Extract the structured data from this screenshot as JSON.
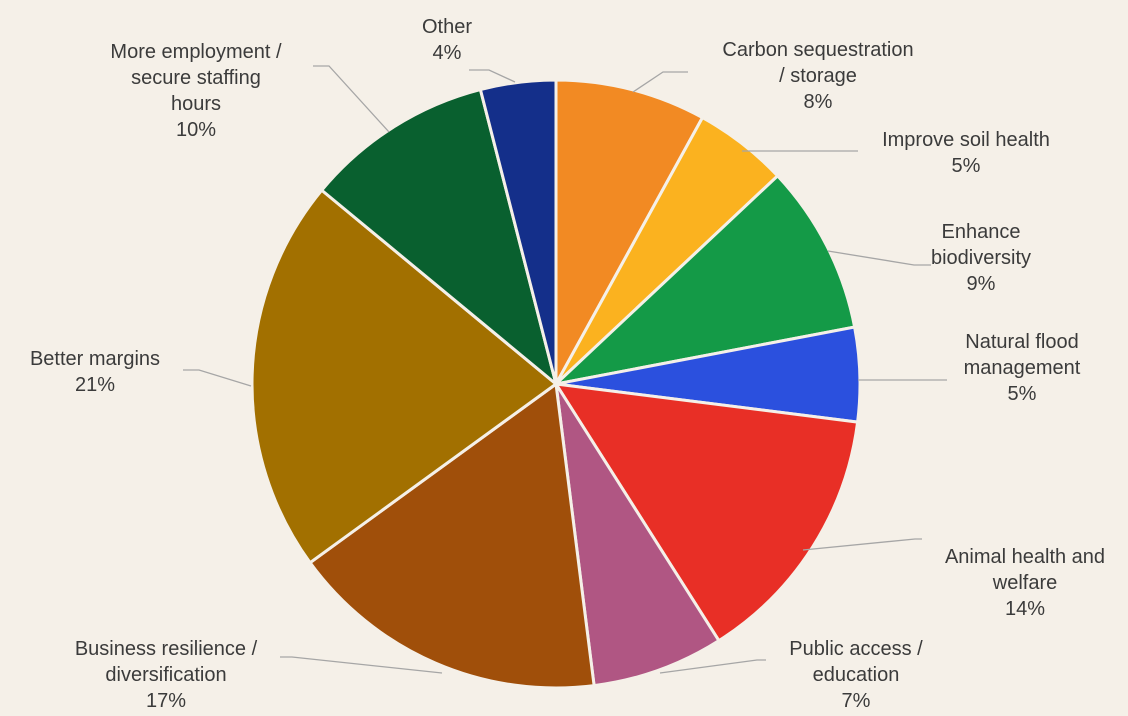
{
  "chart_data": {
    "type": "pie",
    "slices": [
      {
        "label": [
          "Carbon sequestration",
          "/ storage"
        ],
        "value": 8,
        "pct_label": "8%",
        "color": "#f28a23"
      },
      {
        "label": [
          "Improve soil health"
        ],
        "value": 5,
        "pct_label": "5%",
        "color": "#fbb21f"
      },
      {
        "label": [
          "Enhance",
          "biodiversity"
        ],
        "value": 9,
        "pct_label": "9%",
        "color": "#149a47"
      },
      {
        "label": [
          "Natural flood",
          "management"
        ],
        "value": 5,
        "pct_label": "5%",
        "color": "#2b50de"
      },
      {
        "label": [
          "Animal health and",
          "welfare"
        ],
        "value": 14,
        "pct_label": "14%",
        "color": "#e82f26"
      },
      {
        "label": [
          "Public access /",
          "education"
        ],
        "value": 7,
        "pct_label": "7%",
        "color": "#b05683"
      },
      {
        "label": [
          "Business resilience /",
          "diversification"
        ],
        "value": 17,
        "pct_label": "17%",
        "color": "#a04f0a"
      },
      {
        "label": [
          "Better margins"
        ],
        "value": 21,
        "pct_label": "21%",
        "color": "#a27000"
      },
      {
        "label": [
          "More employment /",
          "secure staffing",
          "hours"
        ],
        "value": 10,
        "pct_label": "10%",
        "color": "#09602f"
      },
      {
        "label": [
          "Other"
        ],
        "value": 4,
        "pct_label": "4%",
        "color": "#142f8a"
      }
    ]
  }
}
